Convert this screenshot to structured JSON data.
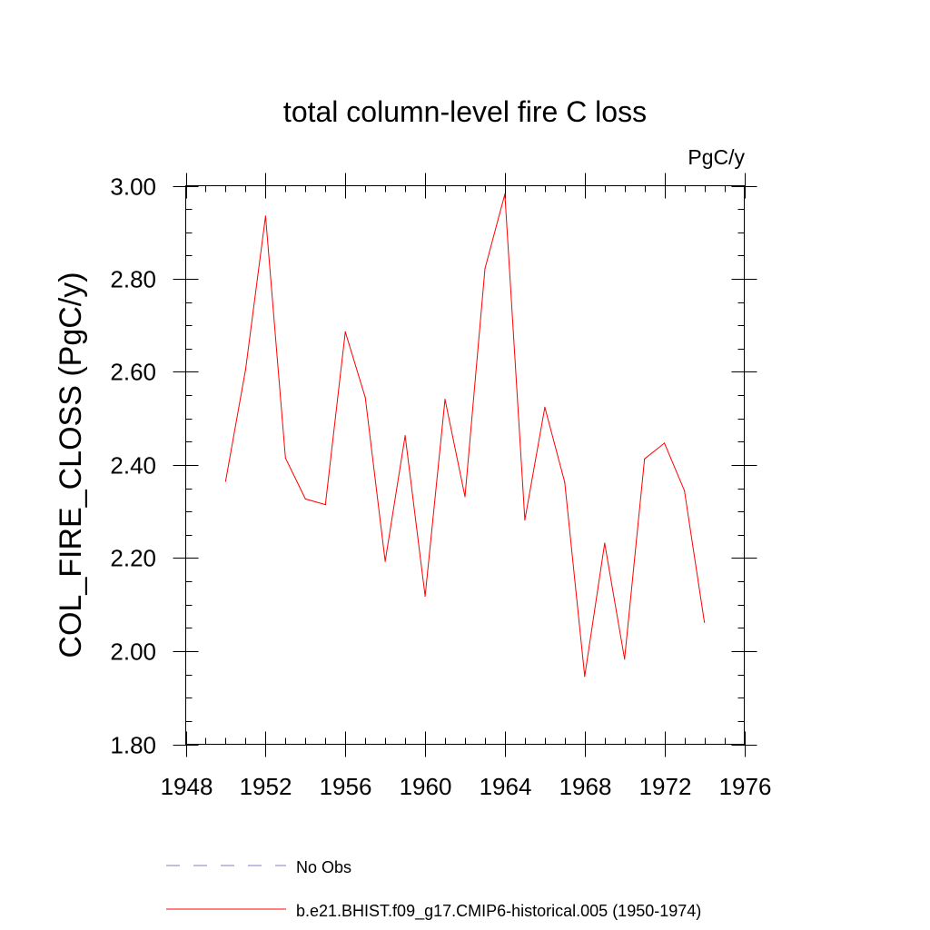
{
  "chart_data": {
    "type": "line",
    "title": "total column-level fire C loss",
    "units_label": "PgC/y",
    "xlabel": "",
    "ylabel": "COL_FIRE_CLOSS  (PgC/y)",
    "xlim": [
      1948,
      1976
    ],
    "ylim": [
      1.8,
      3.0
    ],
    "x_ticks": [
      1948,
      1952,
      1956,
      1960,
      1964,
      1968,
      1972,
      1976
    ],
    "x_tick_labels": [
      "1948",
      "1952",
      "1956",
      "1960",
      "1964",
      "1968",
      "1972",
      "1976"
    ],
    "x_minor_step": 1,
    "y_ticks": [
      1.8,
      2.0,
      2.2,
      2.4,
      2.6,
      2.8,
      3.0
    ],
    "y_tick_labels": [
      "1.80",
      "2.00",
      "2.20",
      "2.40",
      "2.60",
      "2.80",
      "3.00"
    ],
    "y_minor_step": 0.05,
    "grid": false,
    "legend_position": "bottom",
    "series": [
      {
        "name": "b.e21.BHIST.f09_g17.CMIP6-historical.005 (1950-1974)",
        "color": "#ff0000",
        "style": "solid",
        "x": [
          1950,
          1951,
          1952,
          1953,
          1954,
          1955,
          1956,
          1957,
          1958,
          1959,
          1960,
          1961,
          1962,
          1963,
          1964,
          1965,
          1966,
          1967,
          1968,
          1969,
          1970,
          1971,
          1972,
          1973,
          1974
        ],
        "values": [
          2.365,
          2.605,
          2.935,
          2.415,
          2.327,
          2.315,
          2.686,
          2.545,
          2.193,
          2.463,
          2.118,
          2.541,
          2.332,
          2.822,
          2.982,
          2.282,
          2.524,
          2.363,
          1.946,
          2.232,
          1.983,
          2.413,
          2.447,
          2.345,
          2.062
        ]
      }
    ],
    "legend": [
      {
        "label": "No Obs",
        "color": "#7f7fcc",
        "style": "dashed"
      },
      {
        "label": "b.e21.BHIST.f09_g17.CMIP6-historical.005 (1950-1974)",
        "color": "#ff0000",
        "style": "solid"
      }
    ]
  }
}
